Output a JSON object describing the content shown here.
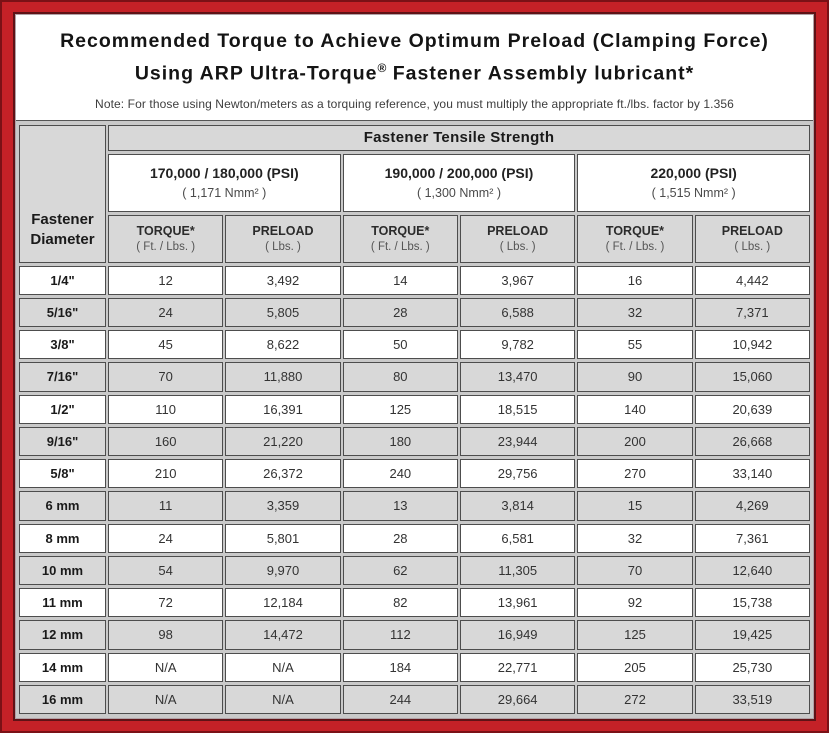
{
  "header": {
    "title_line1": "Recommended Torque to Achieve Optimum Preload (Clamping Force)",
    "title_line2_pre": "Using ARP Ultra-Torque",
    "title_line2_reg": "®",
    "title_line2_post": " Fastener Assembly lubricant*",
    "note": "Note: For those using Newton/meters as a torquing reference, you must multiply the appropriate ft./lbs. factor by 1.356"
  },
  "table": {
    "tensile_strength_header": "Fastener Tensile Strength",
    "diameter_header": {
      "line1": "Fastener",
      "line2": "Diameter"
    },
    "strength_groups": [
      {
        "psi": "170,000 / 180,000 (PSI)",
        "nmm2": "( 1,171 Nmm² )"
      },
      {
        "psi": "190,000 / 200,000 (PSI)",
        "nmm2": "( 1,300 Nmm² )"
      },
      {
        "psi": "220,000 (PSI)",
        "nmm2": "( 1,515 Nmm² )"
      }
    ],
    "sub_headers": [
      {
        "label": "TORQUE*",
        "unit": "( Ft. / Lbs. )"
      },
      {
        "label": "PRELOAD",
        "unit": "( Lbs. )"
      },
      {
        "label": "TORQUE*",
        "unit": "( Ft. / Lbs. )"
      },
      {
        "label": "PRELOAD",
        "unit": "( Lbs. )"
      },
      {
        "label": "TORQUE*",
        "unit": "( Ft. / Lbs. )"
      },
      {
        "label": "PRELOAD",
        "unit": "( Lbs. )"
      }
    ],
    "rows": [
      {
        "diameter": "1/4\"",
        "values": [
          "12",
          "3,492",
          "14",
          "3,967",
          "16",
          "4,442"
        ]
      },
      {
        "diameter": "5/16\"",
        "values": [
          "24",
          "5,805",
          "28",
          "6,588",
          "32",
          "7,371"
        ]
      },
      {
        "diameter": "3/8\"",
        "values": [
          "45",
          "8,622",
          "50",
          "9,782",
          "55",
          "10,942"
        ]
      },
      {
        "diameter": "7/16\"",
        "values": [
          "70",
          "11,880",
          "80",
          "13,470",
          "90",
          "15,060"
        ]
      },
      {
        "diameter": "1/2\"",
        "values": [
          "110",
          "16,391",
          "125",
          "18,515",
          "140",
          "20,639"
        ]
      },
      {
        "diameter": "9/16\"",
        "values": [
          "160",
          "21,220",
          "180",
          "23,944",
          "200",
          "26,668"
        ]
      },
      {
        "diameter": "5/8\"",
        "values": [
          "210",
          "26,372",
          "240",
          "29,756",
          "270",
          "33,140"
        ]
      },
      {
        "diameter": "6 mm",
        "values": [
          "11",
          "3,359",
          "13",
          "3,814",
          "15",
          "4,269"
        ]
      },
      {
        "diameter": "8 mm",
        "values": [
          "24",
          "5,801",
          "28",
          "6,581",
          "32",
          "7,361"
        ]
      },
      {
        "diameter": "10 mm",
        "values": [
          "54",
          "9,970",
          "62",
          "11,305",
          "70",
          "12,640"
        ]
      },
      {
        "diameter": "11 mm",
        "values": [
          "72",
          "12,184",
          "82",
          "13,961",
          "92",
          "15,738"
        ]
      },
      {
        "diameter": "12 mm",
        "values": [
          "98",
          "14,472",
          "112",
          "16,949",
          "125",
          "19,425"
        ]
      },
      {
        "diameter": "14 mm",
        "values": [
          "N/A",
          "N/A",
          "184",
          "22,771",
          "205",
          "25,730"
        ]
      },
      {
        "diameter": "16 mm",
        "values": [
          "N/A",
          "N/A",
          "244",
          "29,664",
          "272",
          "33,519"
        ]
      }
    ]
  },
  "colors": {
    "border_red": "#c42127",
    "border_dark_maroon": "#7a1116",
    "cell_shade_gray": "#d8d8d8",
    "cell_border_gray": "#4d4d4d",
    "title_text": "#141414"
  }
}
